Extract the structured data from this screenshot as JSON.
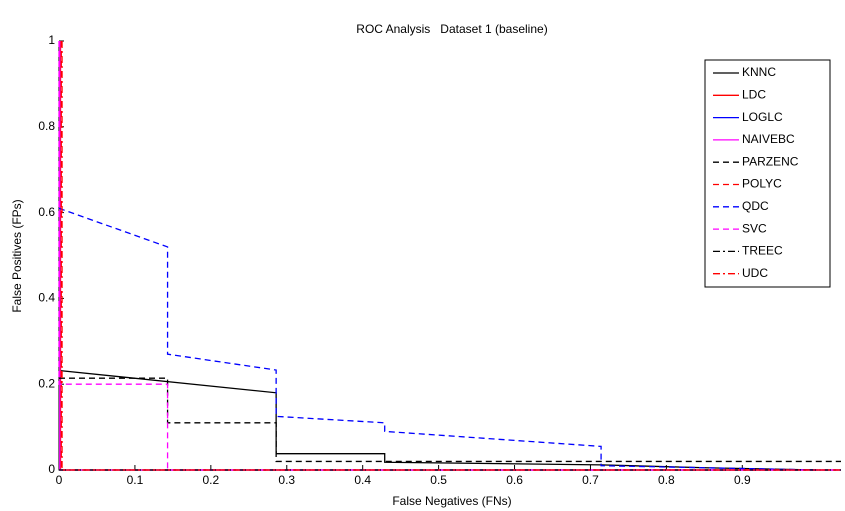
{
  "chart_data": {
    "type": "line",
    "title": "ROC Analysis   Dataset 1 (baseline)",
    "x_label": "False Negatives (FNs)",
    "y_label": "False Positives (FPs)",
    "xlim": [
      0,
      1.03
    ],
    "ylim": [
      0,
      1
    ],
    "xticks": [
      0,
      0.1,
      0.2,
      0.3,
      0.4,
      0.5,
      0.6,
      0.7,
      0.8,
      0.9
    ],
    "yticks": [
      0,
      0.2,
      0.4,
      0.6,
      0.8,
      1
    ],
    "legend": "upper right",
    "series": [
      {
        "name": "KNNC",
        "color": "#000000",
        "dash": "solid",
        "x": [
          0,
          0.286,
          0.286,
          0.429,
          0.429,
          0.714,
          0.857,
          1.0
        ],
        "values": [
          0.232,
          0.18,
          0.038,
          0.038,
          0.018,
          0.012,
          0.005,
          0
        ]
      },
      {
        "name": "LDC",
        "color": "#ff0000",
        "dash": "solid",
        "x": [
          0.002,
          0.002,
          1.03
        ],
        "values": [
          1,
          0,
          0
        ]
      },
      {
        "name": "LOGLC",
        "color": "#0000ff",
        "dash": "solid",
        "x": [
          0,
          1.03
        ],
        "values": [
          0,
          0
        ]
      },
      {
        "name": "NAIVEBC",
        "color": "#ff00ff",
        "dash": "solid",
        "x": [
          0.001,
          0.001,
          1.03
        ],
        "values": [
          1,
          0,
          0
        ]
      },
      {
        "name": "PARZENC",
        "color": "#000000",
        "dash": "dashed",
        "x": [
          0,
          0.143,
          0.143,
          0.286,
          0.286,
          1.03
        ],
        "values": [
          0.214,
          0.214,
          0.11,
          0.11,
          0.02,
          0.02
        ]
      },
      {
        "name": "POLYC",
        "color": "#ff0000",
        "dash": "dashed",
        "x": [
          0.003,
          0.003,
          1.03
        ],
        "values": [
          1,
          0,
          0
        ]
      },
      {
        "name": "QDC",
        "color": "#0000ff",
        "dash": "dashed",
        "x": [
          0,
          0.143,
          0.143,
          0.286,
          0.286,
          0.429,
          0.429,
          0.714,
          0.714,
          1.0
        ],
        "values": [
          0.61,
          0.52,
          0.27,
          0.233,
          0.125,
          0.11,
          0.09,
          0.055,
          0.01,
          0
        ]
      },
      {
        "name": "SVC",
        "color": "#ff00ff",
        "dash": "dashed",
        "x": [
          0,
          0,
          0.143,
          0.143,
          1.03
        ],
        "values": [
          1,
          0.2,
          0.2,
          0,
          0
        ]
      },
      {
        "name": "TREEC",
        "color": "#000000",
        "dash": "dashdot",
        "x": [
          0,
          1.03
        ],
        "values": [
          0,
          0
        ]
      },
      {
        "name": "UDC",
        "color": "#ff0000",
        "dash": "dashdot",
        "x": [
          0.004,
          0.004,
          1.03
        ],
        "values": [
          1,
          0,
          0
        ]
      }
    ]
  }
}
